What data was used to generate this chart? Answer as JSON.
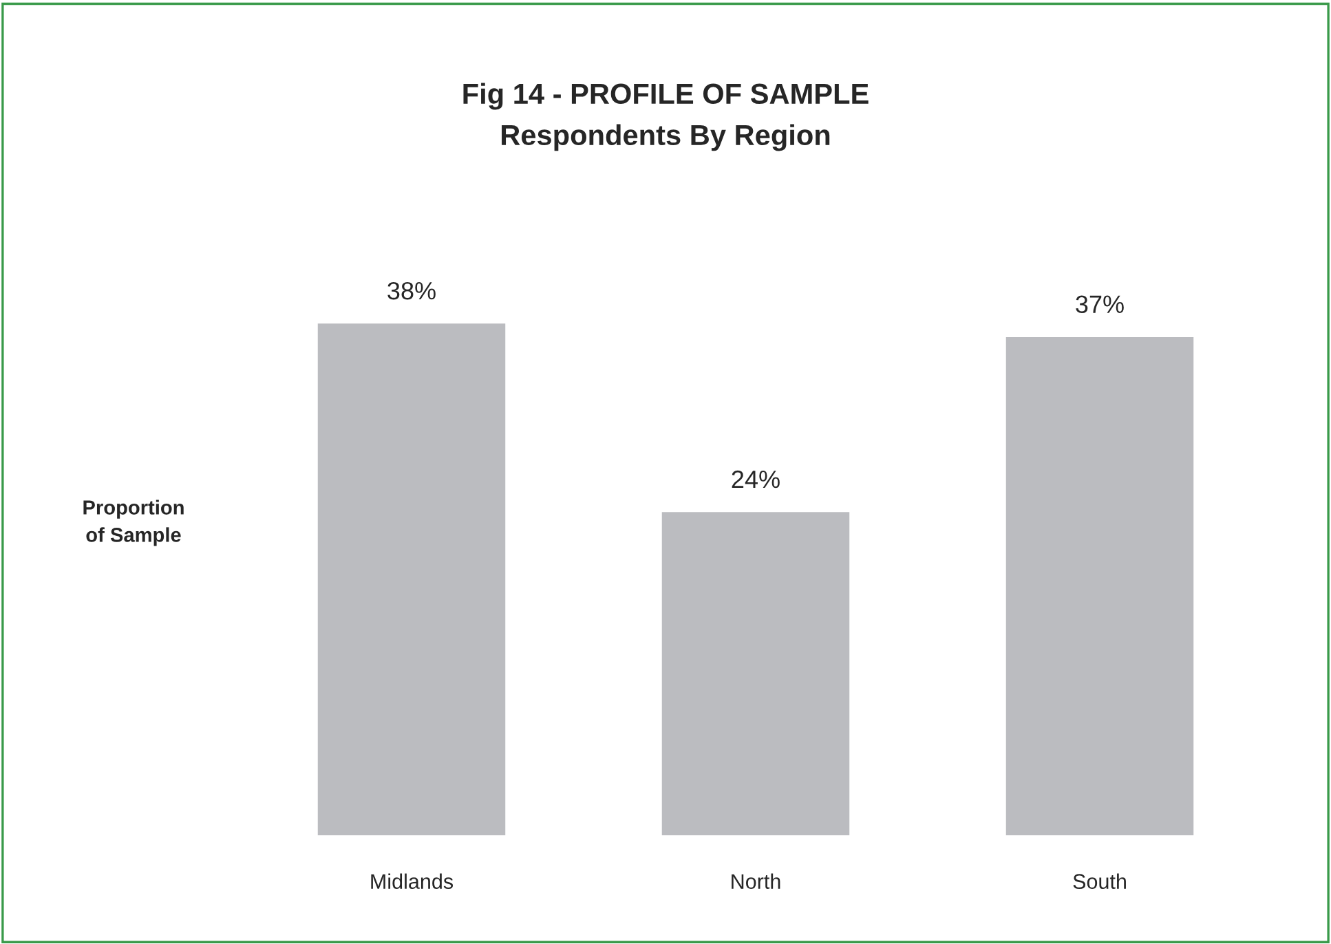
{
  "chart_data": {
    "type": "bar",
    "title": "Fig 14 - PROFILE OF SAMPLE",
    "subtitle": "Respondents By Region",
    "ylabel": "Proportion\nof Sample",
    "categories": [
      "Midlands",
      "North",
      "South"
    ],
    "values": [
      38,
      24,
      37
    ],
    "value_labels": [
      "38%",
      "24%",
      "37%"
    ],
    "color": "#bbbcc0",
    "grid": false,
    "legend": false
  }
}
